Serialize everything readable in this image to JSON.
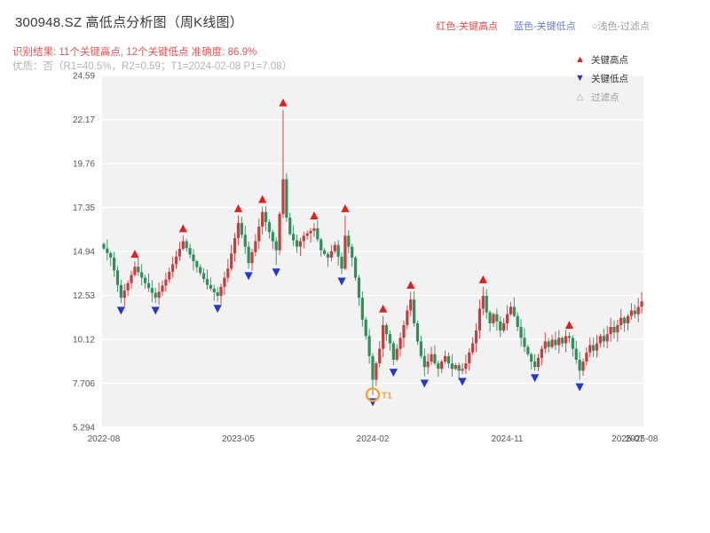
{
  "header": {
    "title": "300948.SZ 高低点分析图（周K线图）",
    "legend_high": "红色-关键高点",
    "legend_low": "蓝色-关键低点",
    "legend_filtered": "○浅色-过滤点",
    "result_line": "识别结果: 11个关键高点, 12个关键低点  准确度: 86.9%",
    "quality_line": "优质：否（R1=40.5%，R2=0.59；T1=2024-02-08 P1=7.08）"
  },
  "plot_legend": {
    "high": "关键高点",
    "low": "关键低点",
    "filtered": "过滤点"
  },
  "chart_data": {
    "type": "candlestick",
    "symbol": "300948.SZ",
    "timeframe": "weekly",
    "title": "300948.SZ 高低点分析图（周K线图）",
    "ylim": [
      5.294,
      24.59
    ],
    "grid": true,
    "y_ticks": [
      "24.59",
      "22.17",
      "19.76",
      "17.35",
      "14.94",
      "12.53",
      "10.12",
      "7.706",
      "5.294"
    ],
    "x_ticks": [
      {
        "index": 0,
        "label": "2022-08"
      },
      {
        "index": 39,
        "label": "2023-05"
      },
      {
        "index": 78,
        "label": "2024-02"
      },
      {
        "index": 117,
        "label": "2024-11"
      },
      {
        "index": 152,
        "label": "2025-07"
      },
      {
        "index": 156,
        "label": "2025-08"
      }
    ],
    "closes": [
      15.1,
      14.85,
      14.6,
      13.9,
      13.1,
      12.4,
      12.8,
      13.2,
      13.65,
      14.1,
      13.8,
      13.5,
      13.2,
      12.93,
      12.67,
      12.4,
      12.73,
      13.07,
      13.4,
      13.82,
      14.24,
      14.66,
      15.08,
      15.5,
      15.13,
      14.77,
      14.4,
      14.08,
      13.75,
      13.43,
      13.1,
      12.9,
      12.7,
      12.5,
      13.0,
      13.5,
      14.0,
      14.83,
      15.67,
      16.5,
      15.85,
      15.2,
      14.3,
      14.9,
      15.5,
      16.3,
      17.1,
      16.55,
      16.0,
      15.5,
      15.0,
      17.0,
      18.9,
      16.8,
      15.9,
      15.55,
      15.2,
      15.5,
      15.8,
      15.93,
      16.07,
      16.2,
      15.6,
      15.0,
      14.8,
      14.6,
      14.95,
      15.3,
      14.65,
      14.0,
      15.8,
      15.2,
      14.6,
      13.5,
      12.4,
      11.2,
      10.3,
      9.2,
      7.9,
      8.8,
      9.6,
      10.9,
      10.4,
      9.9,
      9.0,
      9.6,
      10.2,
      10.9,
      11.7,
      12.3,
      11.0,
      10.0,
      9.2,
      8.6,
      8.9,
      9.3,
      8.8,
      8.5,
      8.9,
      9.2,
      8.8,
      8.5,
      8.7,
      8.4,
      8.5,
      8.8,
      9.4,
      9.9,
      10.6,
      11.8,
      12.5,
      11.6,
      11.0,
      11.5,
      11.1,
      10.6,
      11.0,
      11.5,
      11.9,
      11.4,
      10.8,
      10.2,
      9.7,
      9.3,
      8.9,
      8.6,
      9.1,
      9.6,
      10.0,
      9.7,
      10.1,
      9.8,
      10.2,
      9.9,
      10.3,
      10.2,
      9.6,
      9.0,
      8.4,
      8.9,
      9.4,
      9.8,
      9.5,
      9.9,
      10.3,
      10.0,
      10.4,
      10.8,
      10.5,
      10.9,
      11.3,
      11.0,
      11.4,
      11.7,
      11.5,
      11.9,
      12.2
    ],
    "key_highs": [
      {
        "index": 9,
        "price": 14.4
      },
      {
        "index": 23,
        "price": 15.8
      },
      {
        "index": 39,
        "price": 16.9
      },
      {
        "index": 46,
        "price": 17.4
      },
      {
        "index": 52,
        "price": 22.7
      },
      {
        "index": 61,
        "price": 16.5
      },
      {
        "index": 70,
        "price": 16.9
      },
      {
        "index": 81,
        "price": 11.4
      },
      {
        "index": 89,
        "price": 12.7
      },
      {
        "index": 110,
        "price": 13.0
      },
      {
        "index": 135,
        "price": 10.5
      }
    ],
    "key_lows": [
      {
        "index": 5,
        "price": 12.1
      },
      {
        "index": 15,
        "price": 12.1
      },
      {
        "index": 33,
        "price": 12.2
      },
      {
        "index": 42,
        "price": 14.0
      },
      {
        "index": 50,
        "price": 14.2
      },
      {
        "index": 69,
        "price": 13.7
      },
      {
        "index": 78,
        "price": 7.08
      },
      {
        "index": 84,
        "price": 8.7
      },
      {
        "index": 93,
        "price": 8.1
      },
      {
        "index": 104,
        "price": 8.2
      },
      {
        "index": 125,
        "price": 8.4
      },
      {
        "index": 138,
        "price": 7.9
      }
    ],
    "t1": {
      "index": 78,
      "price": 7.08,
      "label": "T1",
      "date": "2024-02-08"
    },
    "stats": {
      "key_high_count": 11,
      "key_low_count": 12,
      "accuracy_pct": 86.9,
      "R1_pct": 40.5,
      "R2": 0.59,
      "P1": 7.08
    },
    "colors": {
      "up": "#c53d3d",
      "down": "#2e8f5a",
      "key_high": "#e01f1f",
      "key_low": "#2638cc",
      "t1": "#f2a33c",
      "grid": "#ffffff",
      "plot_bg": "#f2f2f2",
      "tick_text": "#555555"
    }
  }
}
